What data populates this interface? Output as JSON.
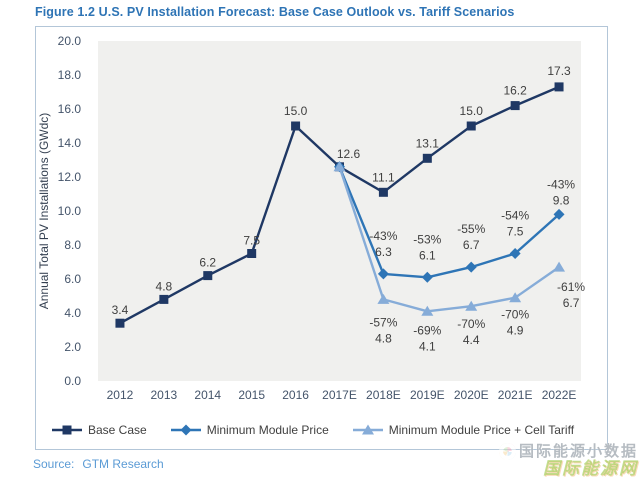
{
  "figure": {
    "title": "Figure 1.2  U.S. PV Installation Forecast: Base Case Outlook vs. Tariff Scenarios",
    "source_label": "Source:",
    "source_value": "GTM Research"
  },
  "chart_data": {
    "type": "line",
    "ylabel": "Annual Total PV Installations (GWdc)",
    "ylim": [
      0,
      20
    ],
    "ytick_step": 2,
    "grid": false,
    "legend_position": "bottom",
    "plot_bg": "#f0f0ee",
    "categories": [
      "2012",
      "2013",
      "2014",
      "2015",
      "2016",
      "2017E",
      "2018E",
      "2019E",
      "2020E",
      "2021E",
      "2022E"
    ],
    "series": [
      {
        "name": "Base Case",
        "marker": "square",
        "color": "#1f3864",
        "values": [
          3.4,
          4.8,
          6.2,
          7.5,
          15.0,
          12.6,
          11.1,
          13.1,
          15.0,
          16.2,
          17.3
        ],
        "labels": [
          {
            "lines": [
              "3.4"
            ],
            "dx": 0,
            "dy": -9
          },
          {
            "lines": [
              "4.8"
            ],
            "dx": 0,
            "dy": -9
          },
          {
            "lines": [
              "6.2"
            ],
            "dx": 0,
            "dy": -9
          },
          {
            "lines": [
              "7.5"
            ],
            "dx": 0,
            "dy": -9
          },
          {
            "lines": [
              "15.0"
            ],
            "dx": 0,
            "dy": -11
          },
          {
            "lines": [
              "12.6"
            ],
            "dx": 9,
            "dy": -9
          },
          {
            "lines": [
              "11.1"
            ],
            "dx": 0,
            "dy": -11
          },
          {
            "lines": [
              "13.1"
            ],
            "dx": 0,
            "dy": -11
          },
          {
            "lines": [
              "15.0"
            ],
            "dx": 0,
            "dy": -11
          },
          {
            "lines": [
              "16.2"
            ],
            "dx": 0,
            "dy": -11
          },
          {
            "lines": [
              "17.3"
            ],
            "dx": 0,
            "dy": -12
          }
        ]
      },
      {
        "name": "Minimum Module Price",
        "marker": "diamond",
        "color": "#2e75b6",
        "values": [
          null,
          null,
          null,
          null,
          null,
          12.6,
          6.3,
          6.1,
          6.7,
          7.5,
          9.8
        ],
        "labels": [
          null,
          null,
          null,
          null,
          null,
          null,
          {
            "lines": [
              "-43%",
              "6.3"
            ],
            "dx": 0,
            "dy": -34
          },
          {
            "lines": [
              "-53%",
              "6.1"
            ],
            "dx": 0,
            "dy": -34
          },
          {
            "lines": [
              "-55%",
              "6.7"
            ],
            "dx": 0,
            "dy": -34
          },
          {
            "lines": [
              "-54%",
              "7.5"
            ],
            "dx": 0,
            "dy": -34
          },
          {
            "lines": [
              "-43%",
              "9.8"
            ],
            "dx": 2,
            "dy": -26
          }
        ]
      },
      {
        "name": "Minimum Module Price + Cell Tariff",
        "marker": "triangle",
        "color": "#86acd8",
        "values": [
          null,
          null,
          null,
          null,
          null,
          12.6,
          4.8,
          4.1,
          4.4,
          4.9,
          6.7
        ],
        "labels": [
          null,
          null,
          null,
          null,
          null,
          null,
          {
            "lines": [
              "-57%",
              "4.8"
            ],
            "dx": 0,
            "dy": 27
          },
          {
            "lines": [
              "-69%",
              "4.1"
            ],
            "dx": 0,
            "dy": 23
          },
          {
            "lines": [
              "-70%",
              "4.4"
            ],
            "dx": 0,
            "dy": 22
          },
          {
            "lines": [
              "-70%",
              "4.9"
            ],
            "dx": 0,
            "dy": 21
          },
          {
            "lines": [
              "-61%",
              "6.7"
            ],
            "dx": 12,
            "dy": 24
          }
        ]
      }
    ]
  },
  "watermark": {
    "line1": "国际能源小数据",
    "line2": "国际能源网"
  }
}
